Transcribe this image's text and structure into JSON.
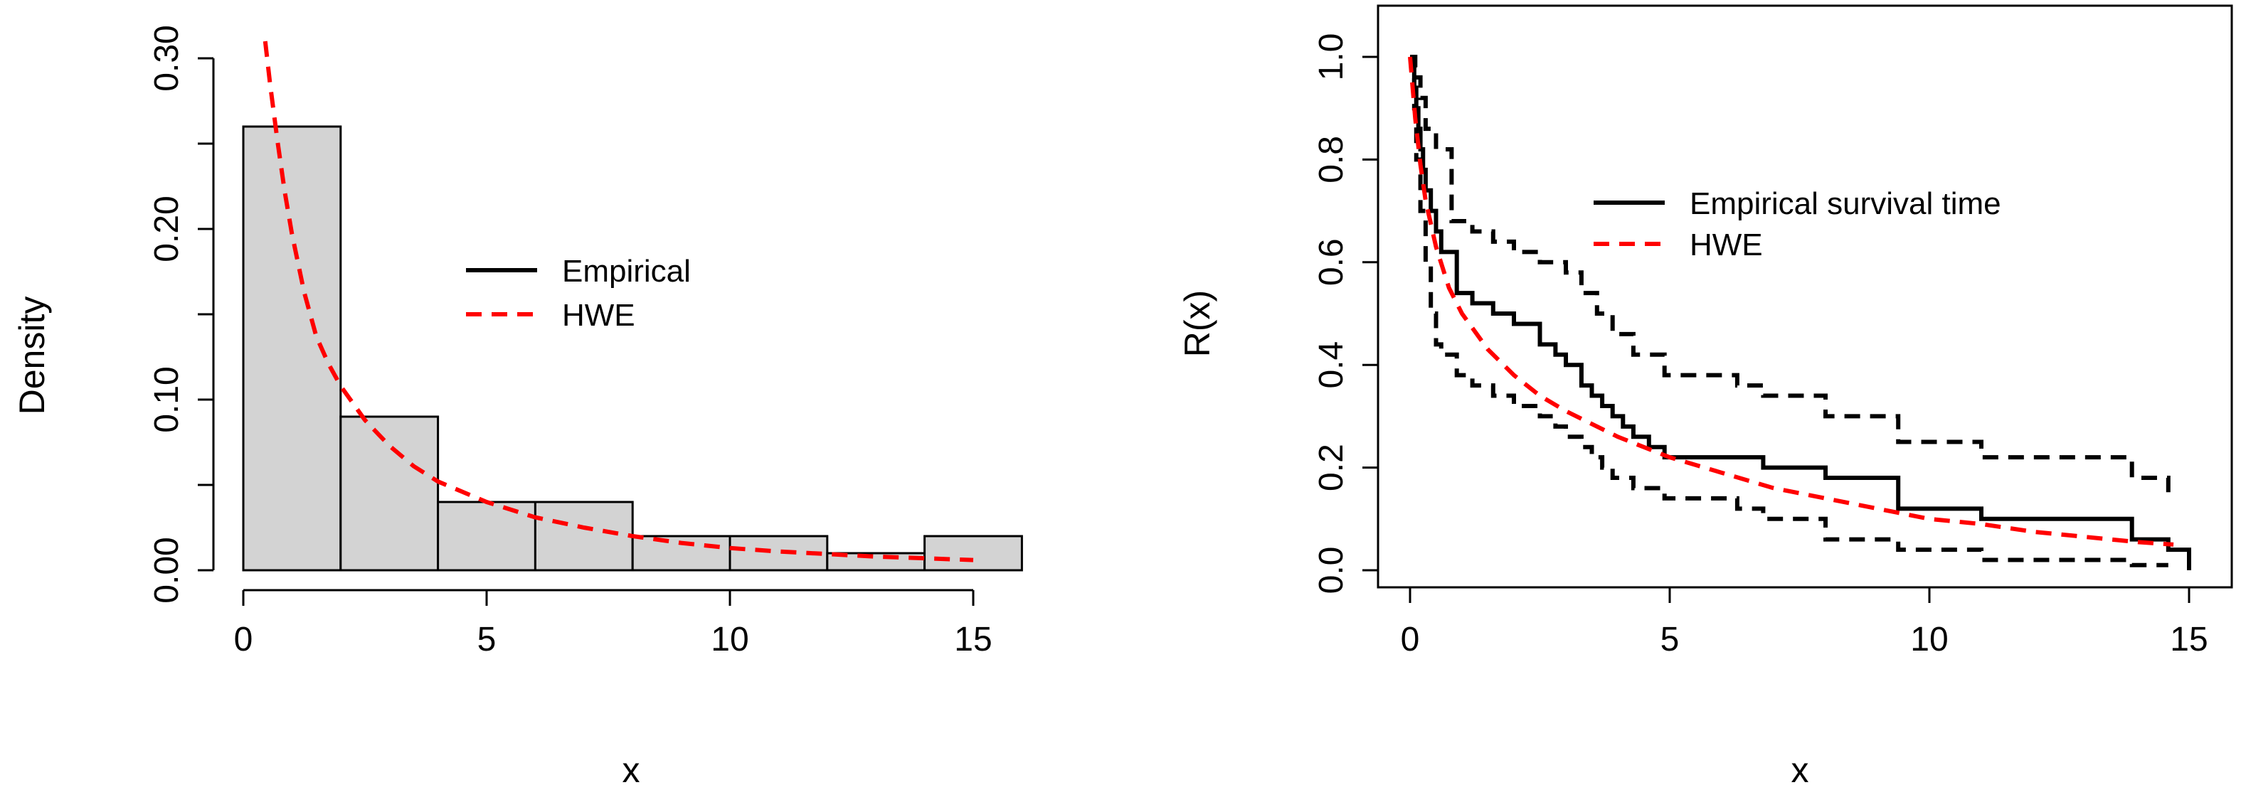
{
  "chart_data": [
    {
      "type": "bar",
      "subtype": "histogram",
      "xlabel": "x",
      "ylabel": "Density",
      "xlim": [
        0,
        16
      ],
      "ylim": [
        0,
        0.3
      ],
      "x_ticks": [
        0,
        5,
        10,
        15
      ],
      "x_tick_labels": [
        "0",
        "5",
        "10",
        "15"
      ],
      "y_ticks": [
        0,
        0.1,
        0.2,
        0.3
      ],
      "y_tick_labels": [
        "0.00",
        "0.10",
        "0.20",
        "0.30"
      ],
      "bins": [
        {
          "from": 0,
          "to": 2,
          "density": 0.26
        },
        {
          "from": 2,
          "to": 4,
          "density": 0.09
        },
        {
          "from": 4,
          "to": 6,
          "density": 0.04
        },
        {
          "from": 6,
          "to": 8,
          "density": 0.04
        },
        {
          "from": 8,
          "to": 10,
          "density": 0.02
        },
        {
          "from": 10,
          "to": 12,
          "density": 0.02
        },
        {
          "from": 12,
          "to": 14,
          "density": 0.01
        },
        {
          "from": 14,
          "to": 16,
          "density": 0.02
        }
      ],
      "fitted_curve": {
        "name": "HWE",
        "color": "#ff0000",
        "style": "dashed",
        "x": [
          0.45,
          0.55,
          0.7,
          0.85,
          1.0,
          1.25,
          1.5,
          1.75,
          2.0,
          2.5,
          3.0,
          3.5,
          4.0,
          5.0,
          6.0,
          7.0,
          8.0,
          9.0,
          10.0,
          11.0,
          12.0,
          13.0,
          14.0,
          15.0
        ],
        "y": [
          0.31,
          0.285,
          0.252,
          0.222,
          0.197,
          0.163,
          0.137,
          0.121,
          0.108,
          0.088,
          0.073,
          0.061,
          0.052,
          0.04,
          0.031,
          0.025,
          0.02,
          0.016,
          0.013,
          0.011,
          0.0095,
          0.008,
          0.007,
          0.006
        ]
      },
      "legend": {
        "placement": "center-right",
        "entries": [
          {
            "label": "Empirical",
            "color": "#000000",
            "style": "solid"
          },
          {
            "label": "HWE",
            "color": "#ff0000",
            "style": "dashed"
          }
        ]
      },
      "bar_fill": "#d3d3d3"
    },
    {
      "type": "line",
      "xlabel": "x",
      "ylabel": "R(x)",
      "xlim": [
        0,
        15
      ],
      "ylim": [
        0,
        1
      ],
      "x_ticks": [
        0,
        5,
        10,
        15
      ],
      "x_tick_labels": [
        "0",
        "5",
        "10",
        "15"
      ],
      "y_ticks": [
        0,
        0.2,
        0.4,
        0.6,
        0.8,
        1.0
      ],
      "y_tick_labels": [
        "0.0",
        "0.2",
        "0.4",
        "0.6",
        "0.8",
        "1.0"
      ],
      "series": [
        {
          "name": "Empirical survival time",
          "color": "#000000",
          "style": "solid",
          "step": true,
          "x": [
            0,
            0.04,
            0.08,
            0.12,
            0.16,
            0.2,
            0.25,
            0.3,
            0.4,
            0.5,
            0.6,
            0.9,
            1.2,
            1.6,
            2.0,
            2.5,
            2.8,
            3.0,
            3.3,
            3.5,
            3.7,
            3.9,
            4.1,
            4.3,
            4.6,
            4.9,
            6.3,
            6.8,
            8.0,
            9.4,
            11.0,
            13.9,
            14.6,
            15.0
          ],
          "y": [
            1.0,
            0.98,
            0.94,
            0.9,
            0.86,
            0.82,
            0.78,
            0.74,
            0.7,
            0.66,
            0.62,
            0.54,
            0.52,
            0.5,
            0.48,
            0.44,
            0.42,
            0.4,
            0.36,
            0.34,
            0.32,
            0.3,
            0.28,
            0.26,
            0.24,
            0.22,
            0.22,
            0.2,
            0.18,
            0.12,
            0.1,
            0.06,
            0.04,
            0.0
          ]
        },
        {
          "name": "upper bound",
          "color": "#000000",
          "style": "dashed",
          "step": true,
          "x": [
            0,
            0.1,
            0.2,
            0.3,
            0.5,
            0.8,
            1.2,
            1.6,
            2.0,
            2.5,
            3.0,
            3.3,
            3.6,
            3.9,
            4.3,
            4.9,
            6.3,
            6.8,
            8.0,
            9.4,
            11.0,
            13.9,
            14.6
          ],
          "y": [
            1.0,
            0.96,
            0.92,
            0.86,
            0.82,
            0.68,
            0.66,
            0.64,
            0.62,
            0.6,
            0.58,
            0.54,
            0.5,
            0.46,
            0.42,
            0.38,
            0.36,
            0.34,
            0.3,
            0.25,
            0.22,
            0.18,
            0.15
          ]
        },
        {
          "name": "lower bound",
          "color": "#000000",
          "style": "dashed",
          "step": true,
          "x": [
            0,
            0.08,
            0.12,
            0.2,
            0.3,
            0.4,
            0.5,
            0.6,
            0.9,
            1.2,
            1.6,
            2.0,
            2.5,
            2.8,
            3.0,
            3.3,
            3.5,
            3.7,
            3.9,
            4.3,
            4.9,
            6.3,
            6.8,
            8.0,
            9.4,
            11.0,
            13.9,
            14.6
          ],
          "y": [
            1.0,
            0.9,
            0.8,
            0.7,
            0.6,
            0.5,
            0.44,
            0.42,
            0.38,
            0.36,
            0.34,
            0.32,
            0.3,
            0.28,
            0.26,
            0.24,
            0.22,
            0.2,
            0.18,
            0.16,
            0.14,
            0.12,
            0.1,
            0.06,
            0.04,
            0.02,
            0.01,
            0.01
          ]
        },
        {
          "name": "HWE",
          "color": "#ff0000",
          "style": "dashed",
          "step": false,
          "x": [
            0.0,
            0.1,
            0.2,
            0.3,
            0.5,
            0.75,
            1.0,
            1.5,
            2.0,
            2.5,
            3.0,
            4.0,
            5.0,
            6.0,
            7.0,
            8.0,
            9.0,
            10.0,
            11.0,
            12.0,
            13.0,
            14.0,
            14.7
          ],
          "y": [
            1.0,
            0.88,
            0.79,
            0.72,
            0.63,
            0.55,
            0.5,
            0.43,
            0.38,
            0.34,
            0.31,
            0.26,
            0.22,
            0.19,
            0.16,
            0.14,
            0.12,
            0.1,
            0.09,
            0.075,
            0.065,
            0.055,
            0.05
          ]
        }
      ],
      "legend": {
        "placement": "top-center",
        "entries": [
          {
            "label": "Empirical survival time",
            "color": "#000000",
            "style": "solid"
          },
          {
            "label": "HWE",
            "color": "#ff0000",
            "style": "dashed"
          }
        ]
      }
    }
  ]
}
